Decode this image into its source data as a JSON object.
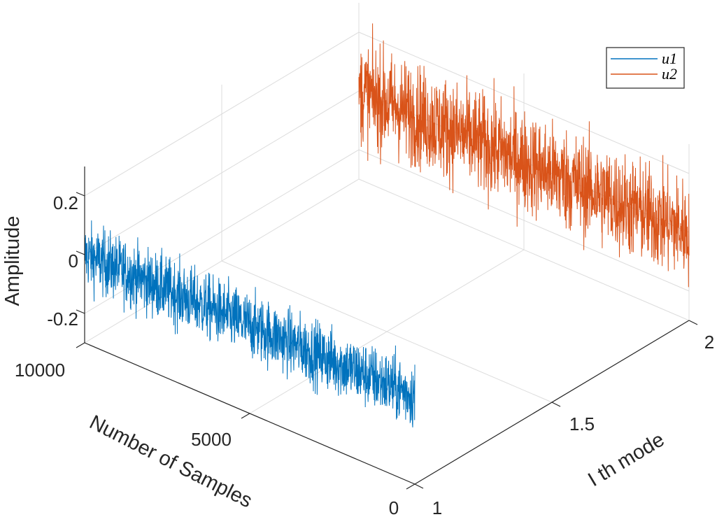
{
  "chart_data": {
    "type": "line",
    "subtype": "3d-line (plot3)",
    "title": "",
    "xlabel": "Number of Samples",
    "ylabel": "I th mode",
    "zlabel": "Amplitude",
    "xlim": [
      0,
      10000
    ],
    "ylim": [
      1,
      2
    ],
    "zlim": [
      -0.3,
      0.3
    ],
    "x_ticks": [
      0,
      5000,
      10000
    ],
    "x_tick_labels": [
      "0",
      "5000",
      "10000"
    ],
    "y_ticks": [
      1,
      1.5,
      2
    ],
    "y_tick_labels": [
      "1",
      "1.5",
      "2"
    ],
    "z_ticks": [
      -0.2,
      0,
      0.2
    ],
    "z_tick_labels": [
      "-0.2",
      "0",
      "0.2"
    ],
    "grid": true,
    "legend_position": "upper right",
    "series": [
      {
        "name": "u1",
        "mode": 1,
        "color": "#0072BD",
        "samples": 10000,
        "mean": 0.0,
        "amplitude_range": [
          -0.22,
          0.19
        ],
        "description": "noise-like signal centered near 0"
      },
      {
        "name": "u2",
        "mode": 2,
        "color": "#D95319",
        "samples": 10000,
        "mean": 0.0,
        "amplitude_range": [
          -0.28,
          0.3
        ],
        "description": "noise-like signal centered near 0, larger spread"
      }
    ]
  },
  "legend": {
    "items": [
      {
        "label": "u1",
        "color": "#0072BD"
      },
      {
        "label": "u2",
        "color": "#D95319"
      }
    ]
  },
  "axes": {
    "x_label": "Number of Samples",
    "y_label": "I th mode",
    "z_label": "Amplitude",
    "x_ticks": [
      "0",
      "5000",
      "10000"
    ],
    "y_ticks": [
      "1",
      "1.5",
      "2"
    ],
    "z_ticks": [
      "0.2",
      "0",
      "-0.2"
    ]
  },
  "colors": {
    "axis": "#262626",
    "grid": "#dcdcdc",
    "u1": "#0072BD",
    "u2": "#D95319"
  }
}
